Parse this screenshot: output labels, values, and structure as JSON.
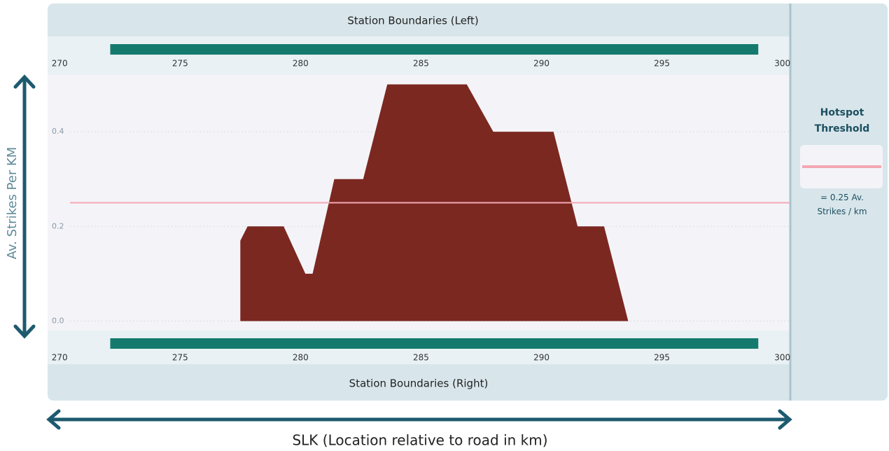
{
  "chart_data": {
    "type": "area",
    "x_label": "SLK (Location relative to road in km)",
    "y_label": "Av. Strikes Per KM",
    "x": [
      277.5,
      277.8,
      279.3,
      280.2,
      280.5,
      281.4,
      282.6,
      283.6,
      286.9,
      288.0,
      290.5,
      291.5,
      292.6,
      293.6
    ],
    "values": [
      0.17,
      0.2,
      0.2,
      0.1,
      0.1,
      0.3,
      0.3,
      0.5,
      0.5,
      0.4,
      0.4,
      0.2,
      0.2,
      0
    ],
    "color": "#7b2821",
    "xlim": [
      269.5,
      300.3
    ],
    "xticks": [
      270,
      275,
      280,
      285,
      290,
      295,
      300
    ],
    "ylim": [
      -0.02,
      0.52
    ],
    "yticks": [
      {
        "value": 0,
        "label": "0.0"
      },
      0.2,
      0.4
    ],
    "grid": true,
    "threshold": 0.25,
    "threshold_color": "#f4a7b3",
    "legend_title": "Hotspot Threshold",
    "threshold_label": "= 0.25 Av. Strikes / km",
    "stations_left": {
      "title": "Station Boundaries (Left)",
      "start": 272.1,
      "end": 299.0,
      "color": "#157a6e"
    },
    "stations_right": {
      "title": "Station Boundaries (Right)",
      "start": 272.1,
      "end": 299.0,
      "color": "#157a6e"
    }
  }
}
